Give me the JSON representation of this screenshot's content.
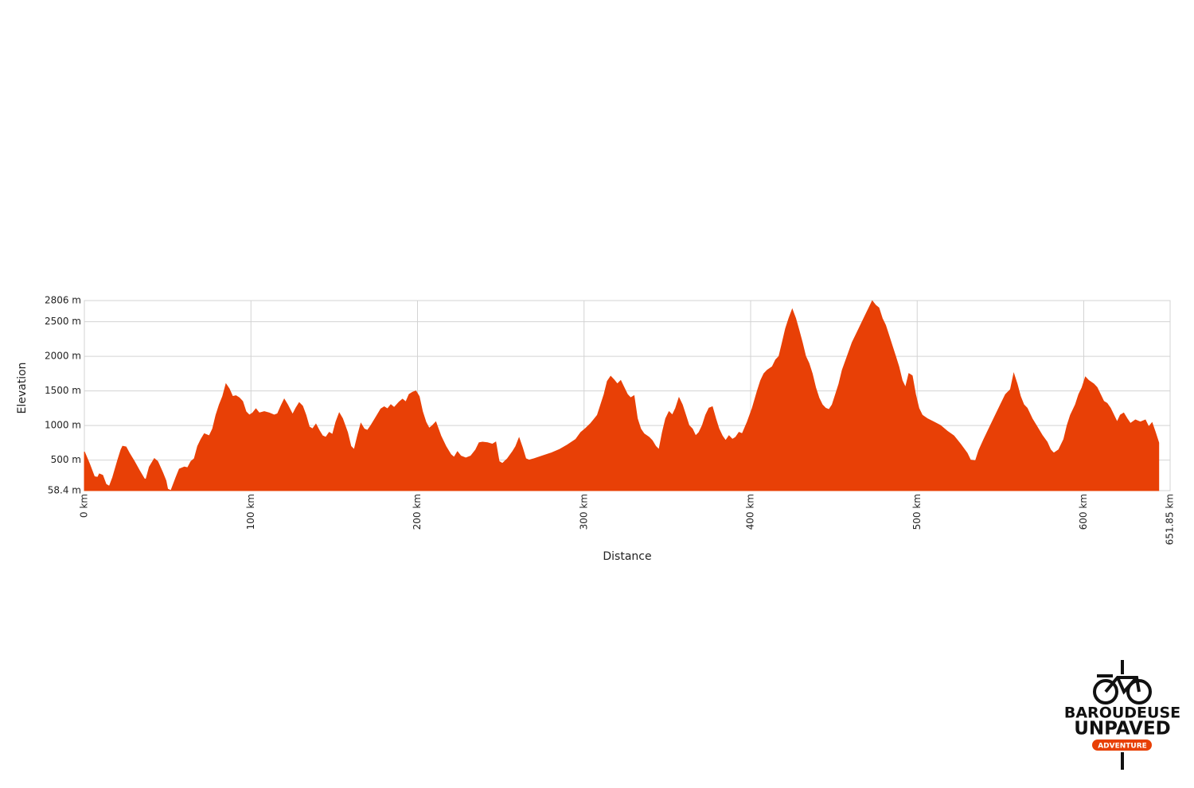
{
  "chart_data": {
    "type": "area",
    "y_label": "Elevation",
    "x_label": "Distance",
    "color": "#e84006",
    "grid": true,
    "xlim": [
      0,
      651.85
    ],
    "ylim": [
      58.4,
      2806
    ],
    "xticks": [
      {
        "value": 0,
        "label": "0 km"
      },
      {
        "value": 100,
        "label": "100 km"
      },
      {
        "value": 200,
        "label": "200 km"
      },
      {
        "value": 300,
        "label": "300 km"
      },
      {
        "value": 400,
        "label": "400 km"
      },
      {
        "value": 500,
        "label": "500 km"
      },
      {
        "value": 600,
        "label": "600 km"
      },
      {
        "value": 651.85,
        "label": "651.85 km"
      }
    ],
    "yticks": [
      {
        "value": 58.4,
        "label": "58.4 m"
      },
      {
        "value": 500,
        "label": "500 m"
      },
      {
        "value": 1000,
        "label": "1000 m"
      },
      {
        "value": 1500,
        "label": "1500 m"
      },
      {
        "value": 2000,
        "label": "2000 m"
      },
      {
        "value": 2500,
        "label": "2500 m"
      },
      {
        "value": 2806,
        "label": "2806 m"
      }
    ],
    "x": [
      0,
      3,
      6,
      8,
      9,
      11,
      13,
      15,
      17,
      20,
      22,
      23,
      25,
      27,
      30,
      33,
      36,
      37,
      39,
      42,
      44,
      47,
      49,
      50,
      52,
      55,
      57,
      60,
      62,
      64,
      66,
      68,
      70,
      72,
      75,
      77,
      79,
      81,
      83,
      85,
      87,
      89,
      91,
      93,
      95,
      97,
      99,
      101,
      103,
      105,
      108,
      111,
      114,
      116,
      118,
      120,
      122,
      125,
      127,
      129,
      131,
      133,
      135,
      137,
      139,
      141,
      143,
      145,
      147,
      149,
      151,
      153,
      155,
      158,
      160,
      162,
      164,
      166,
      168,
      170,
      172,
      175,
      178,
      180,
      182,
      184,
      186,
      189,
      191,
      193,
      195,
      197,
      199,
      201,
      203,
      205,
      207,
      209,
      211,
      214,
      217,
      220,
      222,
      224,
      226,
      229,
      232,
      235,
      237,
      239,
      242,
      245,
      247,
      249,
      251,
      254,
      257,
      259,
      261,
      263,
      265,
      267,
      270,
      275,
      280,
      285,
      290,
      295,
      298,
      301,
      304,
      306,
      308,
      310,
      312,
      314,
      316,
      318,
      320,
      322,
      324,
      326,
      328,
      330,
      332,
      334,
      336,
      339,
      341,
      343,
      345,
      347,
      349,
      351,
      353,
      355,
      357,
      359,
      361,
      363,
      365,
      367,
      369,
      371,
      373,
      375,
      377,
      379,
      381,
      383,
      385,
      387,
      389,
      391,
      393,
      395,
      398,
      401,
      404,
      406,
      408,
      410,
      413,
      415,
      417,
      419,
      421,
      423,
      425,
      427,
      429,
      431,
      433,
      435,
      437,
      439,
      441,
      443,
      445,
      447,
      449,
      451,
      453,
      455,
      458,
      461,
      464,
      467,
      469,
      471,
      473,
      475,
      477,
      479,
      481,
      483,
      485,
      487,
      489,
      491,
      493,
      495,
      497,
      499,
      501,
      503,
      506,
      510,
      514,
      518,
      522,
      526,
      530,
      532,
      535,
      537,
      540,
      544,
      547,
      550,
      553,
      556,
      558,
      560,
      562,
      564,
      566,
      569,
      572,
      575,
      578,
      580,
      582,
      585,
      588,
      590,
      592,
      595,
      597,
      599,
      601,
      603,
      606,
      608,
      610,
      612,
      614,
      616,
      618,
      620,
      622,
      624,
      626,
      628,
      631,
      634,
      637,
      639,
      641,
      643,
      645
    ],
    "values": [
      620,
      450,
      260,
      250,
      300,
      280,
      150,
      120,
      250,
      500,
      650,
      700,
      690,
      600,
      480,
      350,
      230,
      220,
      400,
      520,
      480,
      320,
      200,
      80,
      60,
      250,
      370,
      400,
      390,
      480,
      520,
      700,
      800,
      880,
      850,
      950,
      1150,
      1300,
      1420,
      1600,
      1530,
      1420,
      1430,
      1400,
      1350,
      1200,
      1150,
      1180,
      1240,
      1180,
      1200,
      1180,
      1150,
      1170,
      1280,
      1380,
      1300,
      1160,
      1250,
      1330,
      1280,
      1150,
      980,
      950,
      1020,
      930,
      850,
      830,
      900,
      870,
      1050,
      1180,
      1100,
      900,
      700,
      650,
      850,
      1030,
      950,
      930,
      1000,
      1120,
      1240,
      1270,
      1240,
      1300,
      1260,
      1340,
      1380,
      1340,
      1450,
      1480,
      1500,
      1420,
      1200,
      1050,
      960,
      1000,
      1050,
      850,
      700,
      580,
      540,
      620,
      560,
      530,
      560,
      650,
      750,
      760,
      750,
      730,
      760,
      480,
      450,
      520,
      620,
      700,
      820,
      680,
      520,
      500,
      520,
      560,
      600,
      650,
      720,
      800,
      900,
      960,
      1030,
      1090,
      1150,
      1300,
      1450,
      1640,
      1710,
      1660,
      1600,
      1650,
      1550,
      1450,
      1400,
      1430,
      1100,
      950,
      880,
      830,
      780,
      700,
      650,
      900,
      1100,
      1200,
      1150,
      1250,
      1400,
      1300,
      1150,
      1000,
      950,
      850,
      900,
      1000,
      1150,
      1250,
      1270,
      1100,
      950,
      850,
      780,
      850,
      800,
      830,
      900,
      880,
      1050,
      1250,
      1500,
      1650,
      1750,
      1800,
      1850,
      1950,
      2000,
      2200,
      2400,
      2550,
      2680,
      2550,
      2380,
      2200,
      2000,
      1900,
      1750,
      1550,
      1400,
      1300,
      1250,
      1230,
      1300,
      1450,
      1600,
      1800,
      2000,
      2200,
      2350,
      2500,
      2600,
      2700,
      2800,
      2740,
      2700,
      2550,
      2450,
      2300,
      2150,
      2000,
      1850,
      1650,
      1550,
      1750,
      1720,
      1450,
      1250,
      1150,
      1100,
      1050,
      1000,
      920,
      850,
      730,
      600,
      500,
      490,
      640,
      800,
      1000,
      1150,
      1300,
      1450,
      1520,
      1750,
      1600,
      1420,
      1300,
      1250,
      1100,
      980,
      860,
      760,
      650,
      600,
      650,
      800,
      1000,
      1150,
      1300,
      1450,
      1550,
      1700,
      1650,
      1600,
      1550,
      1450,
      1350,
      1320,
      1250,
      1150,
      1050,
      1150,
      1180,
      1100,
      1030,
      1080,
      1050,
      1080,
      980,
      1040,
      900,
      750
    ]
  },
  "logo": {
    "line1": "BAROUDEUSE",
    "line2": "UNPAVED",
    "badge": "ADVENTURE"
  }
}
